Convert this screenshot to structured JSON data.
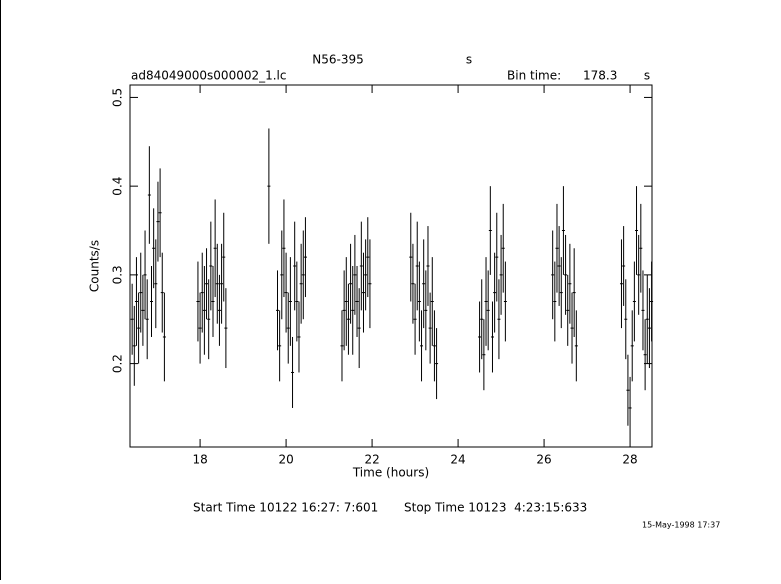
{
  "chart_data": {
    "type": "errorbar",
    "title": "N56-395",
    "title_unit": "s",
    "file_name": "ad84049000s000002_1.lc",
    "bin_time_label": "Bin time:",
    "bin_time": "178.3",
    "bin_time_unit": "s",
    "xlabel": "Time (hours)",
    "ylabel": "Counts/s",
    "start_time": "Start Time 10122 16:27: 7:601",
    "stop_time": "Stop Time 10123  4:23:15:633",
    "date": "15-May-1998 17:37",
    "xlim": [
      16.37,
      28.51
    ],
    "ylim": [
      0.106,
      0.514
    ],
    "xticks": [
      18,
      20,
      22,
      24,
      26,
      28
    ],
    "yticks": [
      0.2,
      0.3,
      0.4,
      0.5
    ],
    "color": "#000000",
    "x": [
      16.42,
      16.47,
      16.52,
      16.57,
      16.62,
      16.67,
      16.72,
      16.77,
      16.82,
      16.87,
      16.92,
      16.97,
      17.02,
      17.07,
      17.12,
      17.17,
      17.95,
      18.0,
      18.05,
      18.1,
      18.15,
      18.2,
      18.25,
      18.3,
      18.35,
      18.4,
      18.45,
      18.5,
      18.55,
      18.6,
      19.6,
      19.8,
      19.85,
      19.9,
      19.95,
      20.0,
      20.05,
      20.1,
      20.15,
      20.2,
      20.25,
      20.3,
      20.35,
      20.4,
      20.45,
      21.3,
      21.35,
      21.4,
      21.45,
      21.5,
      21.55,
      21.6,
      21.65,
      21.7,
      21.75,
      21.8,
      21.85,
      21.9,
      21.95,
      22.9,
      22.95,
      23.0,
      23.05,
      23.1,
      23.15,
      23.2,
      23.25,
      23.3,
      23.35,
      23.4,
      23.45,
      23.5,
      24.5,
      24.55,
      24.6,
      24.65,
      24.7,
      24.75,
      24.8,
      24.85,
      24.9,
      24.95,
      25.0,
      25.05,
      25.1,
      26.2,
      26.25,
      26.3,
      26.35,
      26.4,
      26.45,
      26.5,
      26.55,
      26.6,
      26.65,
      26.7,
      26.75,
      27.8,
      27.85,
      27.9,
      27.95,
      28.0,
      28.05,
      28.1,
      28.15,
      28.2,
      28.25,
      28.3,
      28.35,
      28.4,
      28.45,
      28.5
    ],
    "values": [
      0.25,
      0.22,
      0.27,
      0.24,
      0.28,
      0.26,
      0.3,
      0.25,
      0.39,
      0.27,
      0.33,
      0.29,
      0.36,
      0.37,
      0.28,
      0.23,
      0.27,
      0.24,
      0.28,
      0.26,
      0.29,
      0.25,
      0.31,
      0.27,
      0.33,
      0.29,
      0.26,
      0.29,
      0.32,
      0.24,
      0.4,
      0.26,
      0.22,
      0.3,
      0.33,
      0.28,
      0.24,
      0.27,
      0.19,
      0.31,
      0.27,
      0.23,
      0.29,
      0.3,
      0.32,
      0.22,
      0.26,
      0.27,
      0.25,
      0.29,
      0.26,
      0.3,
      0.27,
      0.24,
      0.31,
      0.28,
      0.3,
      0.32,
      0.29,
      0.32,
      0.29,
      0.25,
      0.31,
      0.27,
      0.22,
      0.29,
      0.26,
      0.31,
      0.24,
      0.27,
      0.22,
      0.2,
      0.23,
      0.25,
      0.21,
      0.27,
      0.26,
      0.35,
      0.23,
      0.28,
      0.32,
      0.25,
      0.3,
      0.33,
      0.27,
      0.3,
      0.27,
      0.33,
      0.31,
      0.28,
      0.35,
      0.3,
      0.26,
      0.29,
      0.24,
      0.28,
      0.22,
      0.29,
      0.31,
      0.25,
      0.17,
      0.15,
      0.22,
      0.27,
      0.35,
      0.3,
      0.33,
      0.26,
      0.21,
      0.25,
      0.24,
      0.27
    ],
    "errors": [
      0.04,
      0.045,
      0.05,
      0.04,
      0.045,
      0.04,
      0.05,
      0.045,
      0.055,
      0.04,
      0.045,
      0.05,
      0.045,
      0.05,
      0.045,
      0.05,
      0.045,
      0.04,
      0.045,
      0.05,
      0.04,
      0.045,
      0.05,
      0.04,
      0.055,
      0.045,
      0.04,
      0.045,
      0.05,
      0.045,
      0.065,
      0.045,
      0.04,
      0.05,
      0.055,
      0.045,
      0.04,
      0.05,
      0.04,
      0.05,
      0.045,
      0.04,
      0.045,
      0.05,
      0.045,
      0.04,
      0.045,
      0.05,
      0.04,
      0.045,
      0.05,
      0.045,
      0.04,
      0.045,
      0.05,
      0.045,
      0.04,
      0.045,
      0.05,
      0.05,
      0.045,
      0.04,
      0.05,
      0.045,
      0.04,
      0.05,
      0.045,
      0.045,
      0.04,
      0.05,
      0.04,
      0.04,
      0.04,
      0.045,
      0.04,
      0.05,
      0.045,
      0.05,
      0.04,
      0.045,
      0.05,
      0.045,
      0.045,
      0.05,
      0.045,
      0.05,
      0.045,
      0.05,
      0.045,
      0.04,
      0.05,
      0.045,
      0.04,
      0.045,
      0.04,
      0.05,
      0.04,
      0.05,
      0.045,
      0.045,
      0.04,
      0.035,
      0.04,
      0.045,
      0.05,
      0.045,
      0.05,
      0.045,
      0.04,
      0.05,
      0.045,
      0.045
    ]
  }
}
